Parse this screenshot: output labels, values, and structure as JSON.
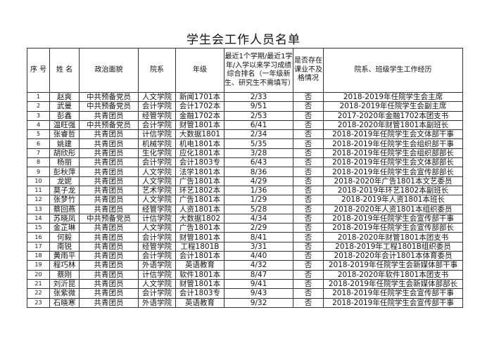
{
  "title": "学生会工作人员名单",
  "headers": [
    "序 号",
    "姓 名",
    "政治面貌",
    "院系",
    "年级",
    "最近1个学期/最近1学年/入学以来学习成绩综合排名（一年级新生、研究生不需填写）",
    "是否存在课业不及格情况",
    "院系、班级学生工作经历"
  ],
  "rows": [
    [
      "1",
      "赵爽",
      "中共预备党员",
      "人文学院",
      "新闻1701本",
      "2/33",
      "否",
      "2018-2019年任院学生会主席"
    ],
    [
      "2",
      "武曼",
      "中共预备党员",
      "会计学院",
      "会计1702本",
      "9/51",
      "否",
      "2018-2019年任院学生会副主席"
    ],
    [
      "3",
      "彭鑫",
      "共青团员",
      "经管学院",
      "金融1702本",
      "2/53",
      "否",
      "2017-2020年金融1702本团支书"
    ],
    [
      "4",
      "温旺强",
      "中共预备党员",
      "会计学院",
      "财管1801本",
      "6/41",
      "否",
      "2018-2020年财管1801本副班长"
    ],
    [
      "5",
      "张睿哲",
      "共青团员",
      "计信学院",
      "大数据1801",
      "2/34",
      "否",
      "2018-2019年任院学生会文体部干事"
    ],
    [
      "6",
      "姚建",
      "共青团员",
      "机械学院",
      "机电1801本",
      "5/35",
      "否",
      "2018-2019年任院学生会组织部干事"
    ],
    [
      "7",
      "胡欣彤",
      "共青团员",
      "生化学院",
      "应化1801本",
      "3/28",
      "否",
      "2018-2019年任院学生会组织部部长"
    ],
    [
      "8",
      "杨丽",
      "共青团员",
      "会计学院",
      "会计1803专",
      "6/43",
      "否",
      "2018-2019年任院学生会文体部部长"
    ],
    [
      "9",
      "彭秋萍",
      "共青团员",
      "人文学院",
      "法学1801本",
      "8/36",
      "否",
      "2018-2019年任院学生会宣传部部长"
    ],
    [
      "10",
      "龙妮",
      "共青团员",
      "人文学院",
      "广告1801本",
      "4/29",
      "否",
      "2018-2020年广告1801本文艺委员"
    ],
    [
      "11",
      "莫子龙",
      "共青团员",
      "艺术学院",
      "环艺1802本",
      "1/36",
      "否",
      "2018-2019年环艺1802本副班长"
    ],
    [
      "12",
      "张梦竹",
      "共青团员",
      "人文学院",
      "广告1801本",
      "1/29",
      "否",
      "2018-2019年人资1801本班长"
    ],
    [
      "13",
      "蔡回燕",
      "共青团员",
      "经管学院",
      "人资1801本",
      "5/28",
      "否",
      "2018-2020年人资1801本组织委员"
    ],
    [
      "14",
      "苏晓凤",
      "中共预备党员",
      "计信学院",
      "大数据1802",
      "4/34",
      "否",
      "2018-2019年任院学生会宣传部干事"
    ],
    [
      "15",
      "金芷琳",
      "共青团员",
      "人文学院",
      "广告1801本",
      "2/29",
      "否",
      "2018-2019年任院学生会宣传部部长"
    ],
    [
      "16",
      "何毅",
      "共青团员",
      "会计学院",
      "财管1801本",
      "8/41",
      "否",
      "2018-2020年财管1801本团支书"
    ],
    [
      "17",
      "南锐",
      "共青团员",
      "经管学院",
      "工程1801B",
      "3/31",
      "否",
      "2018-2019年工程1801B组织委员"
    ],
    [
      "18",
      "黄雨平",
      "共青团员",
      "会计学院",
      "会计1801本",
      "4/40",
      "否",
      "2018-2020年会计1801本体育委员"
    ],
    [
      "19",
      "程巧林",
      "共青团员",
      "外语学院",
      "英语教育",
      "4/32",
      "否",
      "2018-2019年任院学生会新媒体部干事"
    ],
    [
      "20",
      "蔡刚",
      "共青团员",
      "计信学院",
      "软件1801本",
      "8/47",
      "否",
      "2018-2020年软件1801本团支书"
    ],
    [
      "21",
      "刘沂昆",
      "共青团员",
      "人文学院",
      "财管1801本",
      "9/41",
      "否",
      "2018-2019年任院学生会新媒体部部长"
    ],
    [
      "22",
      "张紫微",
      "共青团员",
      "会计学院",
      "会计1803专",
      "9/43",
      "否",
      "2018-2019年任院学生会宣传部干事"
    ],
    [
      "23",
      "石晓寒",
      "共青团员",
      "外语学院",
      "英语教育",
      "9/32",
      "否",
      "2018-2019年任院学生会宣传部干事"
    ]
  ]
}
